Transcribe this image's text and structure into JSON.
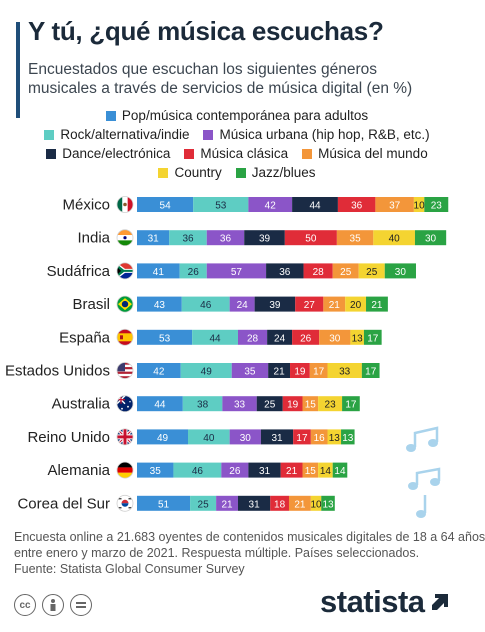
{
  "header": {
    "title": "Y tú, ¿qué música escuchas?",
    "subtitle_line1": "Encuestados que escuchan los siguientes géneros",
    "subtitle_line2": "musicales a través de servicios de música digital (en %)"
  },
  "colors": {
    "accent": "#1f4e79",
    "pop": "#3a8fd6",
    "rock": "#5ecdc3",
    "urbana": "#8b55c8",
    "dance": "#1a2b45",
    "clasica": "#e02c38",
    "mundo": "#f3963a",
    "country": "#f4d431",
    "jazz": "#2aa344"
  },
  "chart_data": {
    "type": "bar",
    "stacked": true,
    "orientation": "horizontal",
    "categories": [
      "México",
      "India",
      "Sudáfrica",
      "Brasil",
      "España",
      "Estados Unidos",
      "Australia",
      "Reino Unido",
      "Alemania",
      "Corea del Sur"
    ],
    "series": [
      {
        "name": "Pop/música contemporánea para adultos",
        "values": [
          54,
          31,
          41,
          43,
          53,
          42,
          44,
          49,
          35,
          51
        ]
      },
      {
        "name": "Rock/alternativa/indie",
        "values": [
          53,
          36,
          26,
          46,
          44,
          49,
          38,
          40,
          46,
          25
        ]
      },
      {
        "name": "Música urbana (hip hop, R&B, etc.)",
        "values": [
          42,
          36,
          57,
          24,
          28,
          35,
          33,
          30,
          26,
          21
        ]
      },
      {
        "name": "Dance/electrónica",
        "values": [
          44,
          39,
          36,
          39,
          24,
          21,
          25,
          31,
          31,
          31
        ]
      },
      {
        "name": "Música clásica",
        "values": [
          36,
          50,
          28,
          27,
          26,
          19,
          19,
          17,
          21,
          18
        ]
      },
      {
        "name": "Música del mundo",
        "values": [
          37,
          35,
          25,
          21,
          30,
          17,
          15,
          16,
          15,
          21
        ]
      },
      {
        "name": "Country",
        "values": [
          10,
          40,
          25,
          20,
          13,
          33,
          23,
          13,
          14,
          10
        ]
      },
      {
        "name": "Jazz/blues",
        "values": [
          23,
          30,
          30,
          21,
          17,
          17,
          17,
          13,
          14,
          13
        ]
      }
    ],
    "data_labels": true
  },
  "footer": {
    "note_line1": "Encuesta online a 21.683 oyentes de contenidos musicales digitales de 18 a 64 años",
    "note_line2": "entre enero y marzo de 2021. Respuesta múltiple. Países seleccionados.",
    "source": "Fuente: Statista Global Consumer Survey",
    "brand": "statista",
    "license_icons": [
      "cc",
      "by",
      "nd"
    ]
  }
}
